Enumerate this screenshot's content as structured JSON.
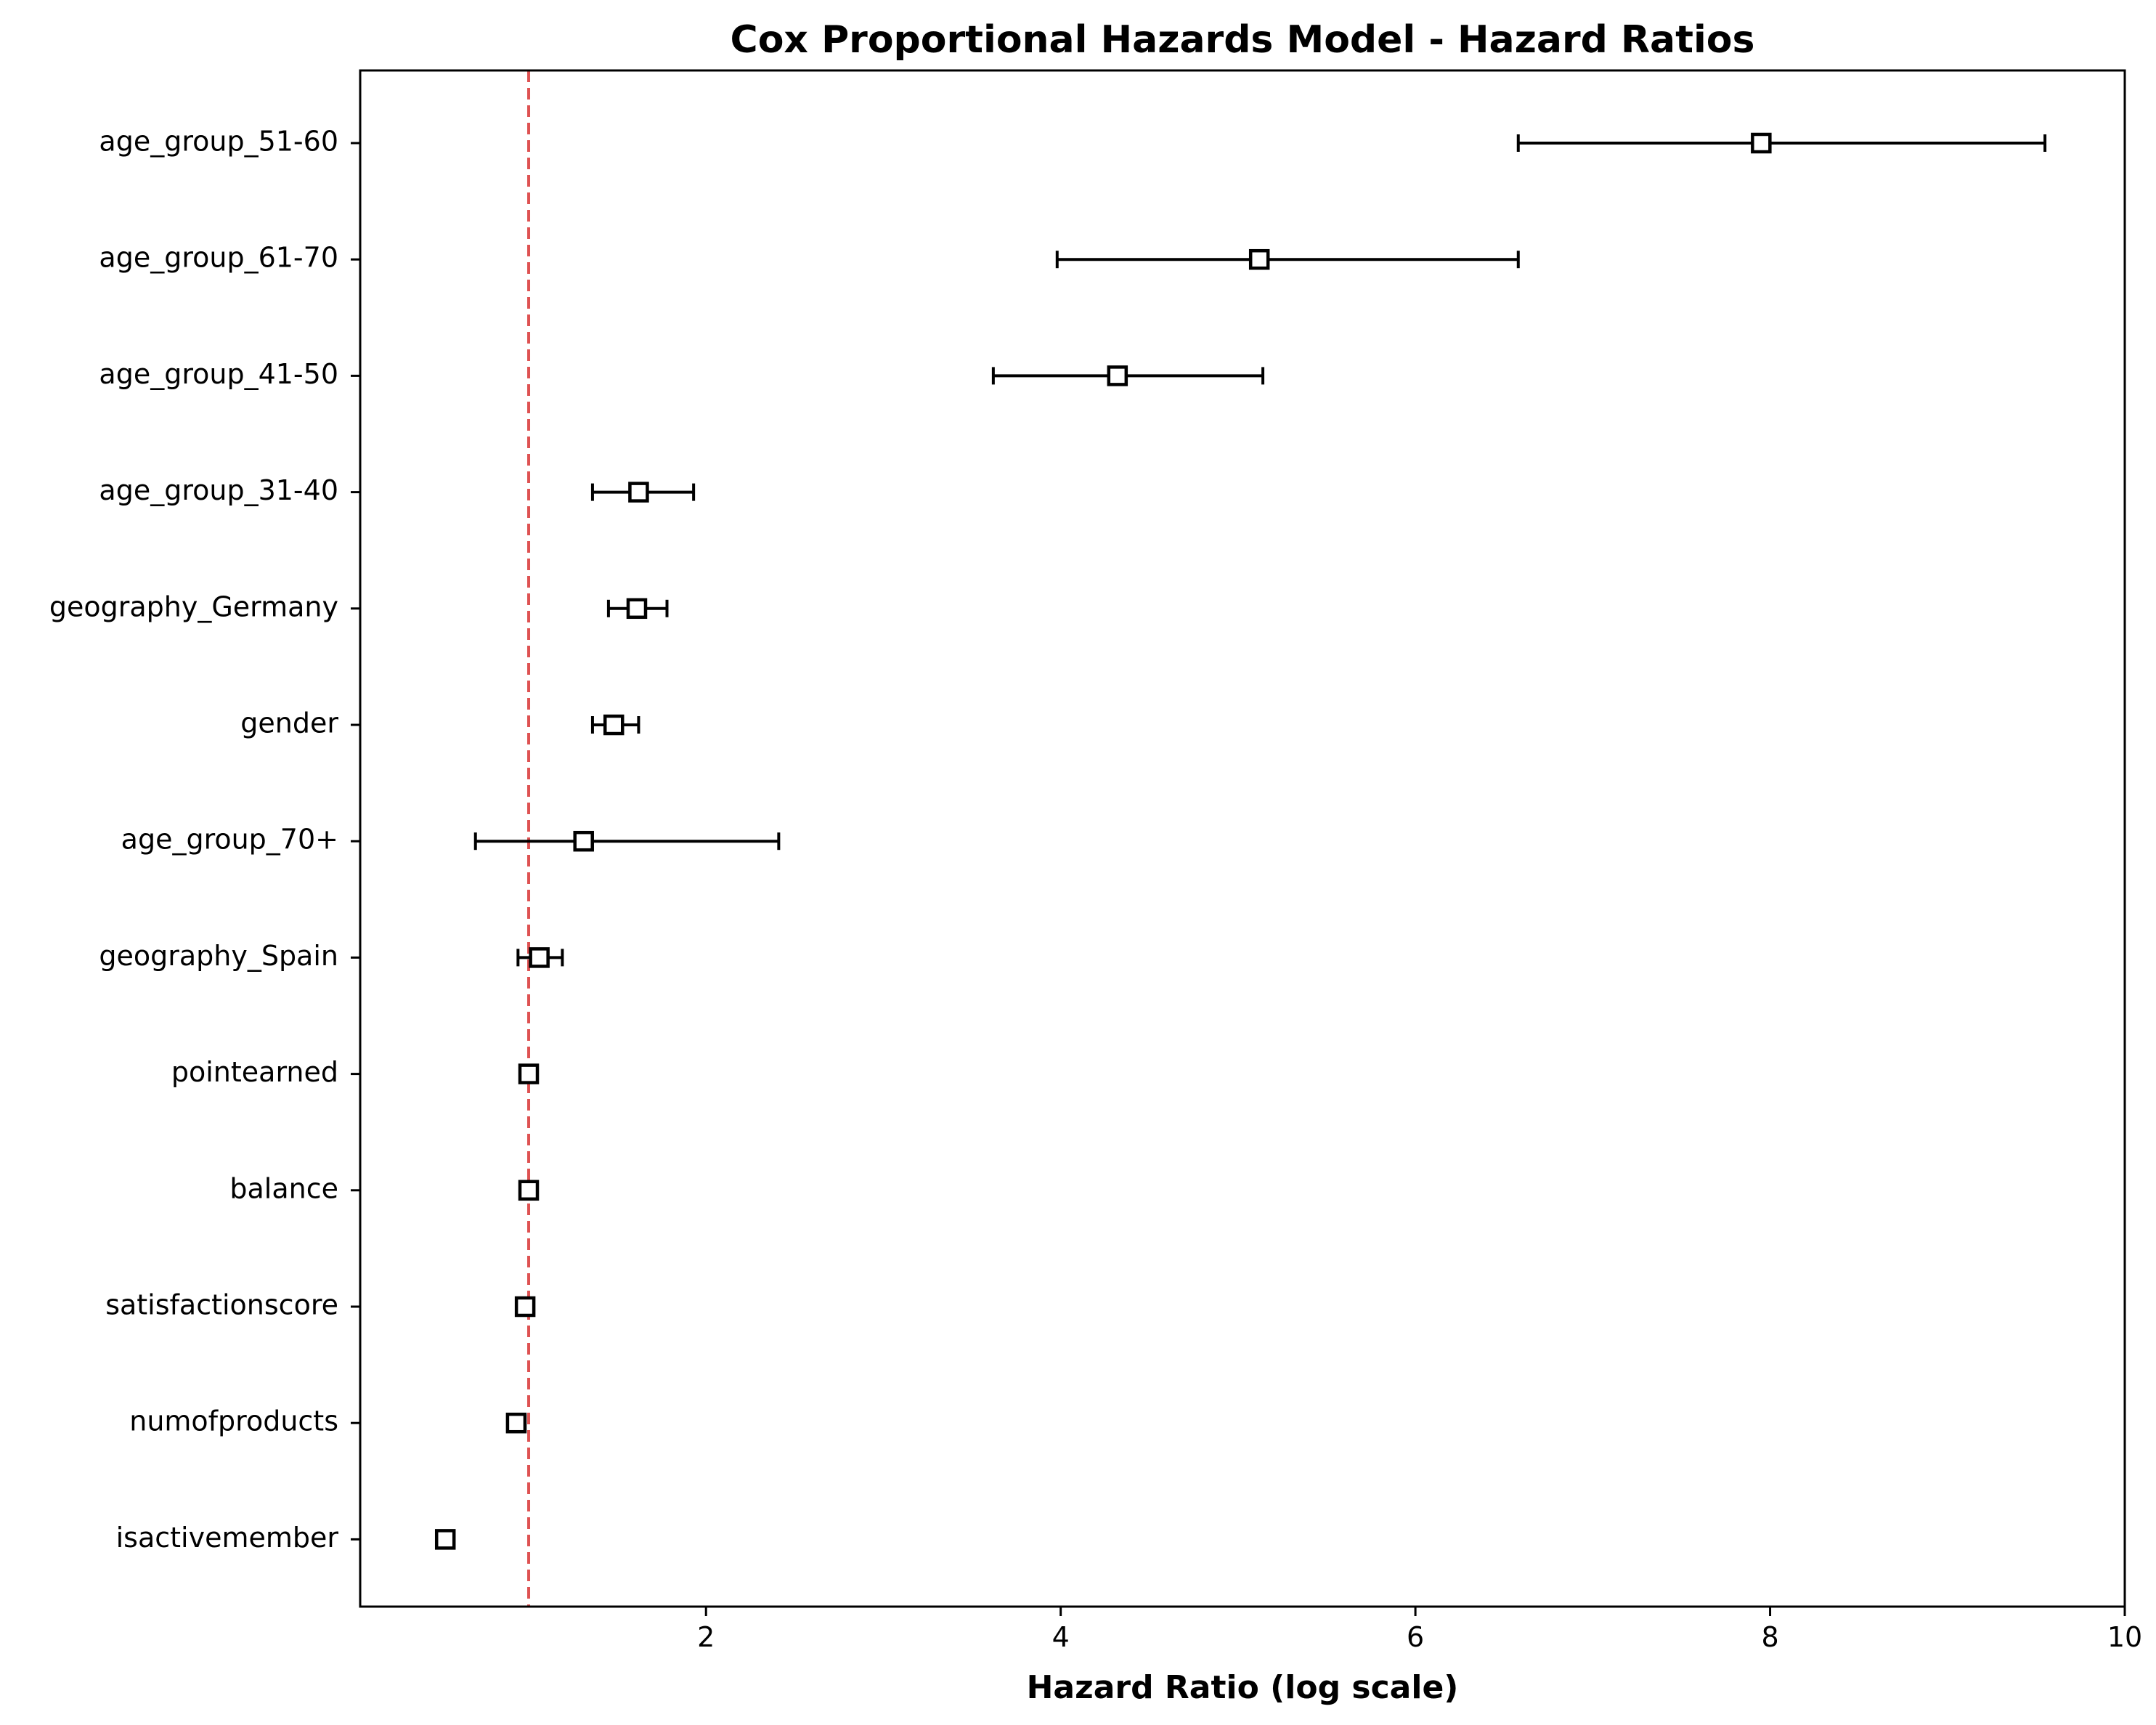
{
  "chart_data": {
    "type": "forest",
    "title": "Cox Proportional Hazards Model - Hazard Ratios",
    "xlabel": "Hazard Ratio (log scale)",
    "ylabel": "",
    "xlim": [
      0.05,
      10.0
    ],
    "xticks": [
      2,
      4,
      6,
      8,
      10
    ],
    "xtick_labels": [
      "2",
      "4",
      "6",
      "8",
      "10"
    ],
    "reference_line": {
      "x": 1.0,
      "color": "#d62728",
      "style": "dashed"
    },
    "marker": "open-square",
    "grid": false,
    "legend": "none",
    "rows": [
      {
        "label": "age_group_51-60",
        "hr": 7.95,
        "ci_low": 6.58,
        "ci_high": 9.55
      },
      {
        "label": "age_group_61-70",
        "hr": 5.12,
        "ci_low": 3.98,
        "ci_high": 6.58
      },
      {
        "label": "age_group_41-50",
        "hr": 4.32,
        "ci_low": 3.62,
        "ci_high": 5.14
      },
      {
        "label": "age_group_31-40",
        "hr": 1.62,
        "ci_low": 1.36,
        "ci_high": 1.93
      },
      {
        "label": "geography_Germany",
        "hr": 1.61,
        "ci_low": 1.45,
        "ci_high": 1.78
      },
      {
        "label": "gender",
        "hr": 1.48,
        "ci_low": 1.36,
        "ci_high": 1.62
      },
      {
        "label": "age_group_70+",
        "hr": 1.31,
        "ci_low": 0.7,
        "ci_high": 2.41
      },
      {
        "label": "geography_Spain",
        "hr": 1.06,
        "ci_low": 0.94,
        "ci_high": 1.19
      },
      {
        "label": "pointearned",
        "hr": 1.0,
        "ci_low": 1.0,
        "ci_high": 1.0
      },
      {
        "label": "balance",
        "hr": 1.0,
        "ci_low": 1.0,
        "ci_high": 1.0
      },
      {
        "label": "satisfactionscore",
        "hr": 0.98,
        "ci_low": 0.98,
        "ci_high": 0.98
      },
      {
        "label": "numofproducts",
        "hr": 0.93,
        "ci_low": 0.89,
        "ci_high": 0.98
      },
      {
        "label": "isactivemember",
        "hr": 0.53,
        "ci_low": 0.53,
        "ci_high": 0.53
      }
    ]
  }
}
